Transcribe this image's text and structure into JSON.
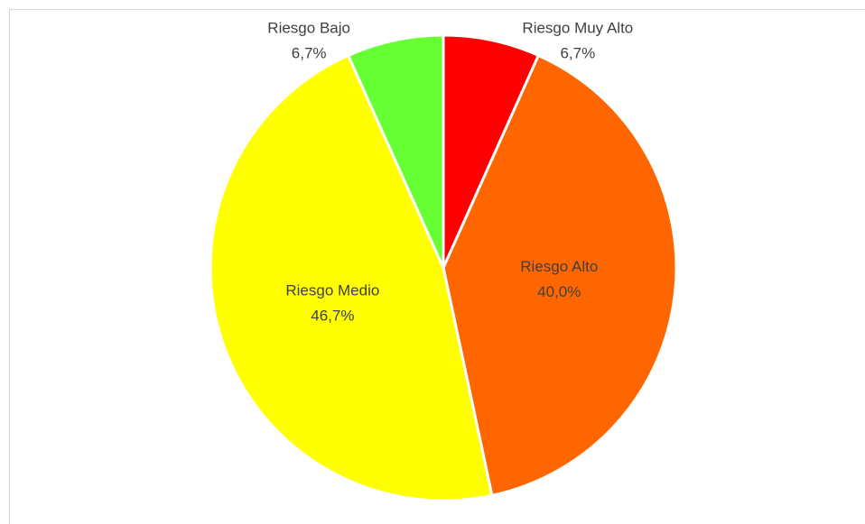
{
  "chart_data": {
    "type": "pie",
    "categories": [
      "Riesgo Muy Alto",
      "Riesgo Alto",
      "Riesgo Medio",
      "Riesgo Bajo"
    ],
    "values": [
      6.7,
      40.0,
      46.7,
      6.7
    ],
    "value_labels": [
      "6,7%",
      "40,0%",
      "46,7%",
      "6,7%"
    ],
    "colors": [
      "#ff0000",
      "#ff6600",
      "#ffff00",
      "#66ff33"
    ]
  }
}
